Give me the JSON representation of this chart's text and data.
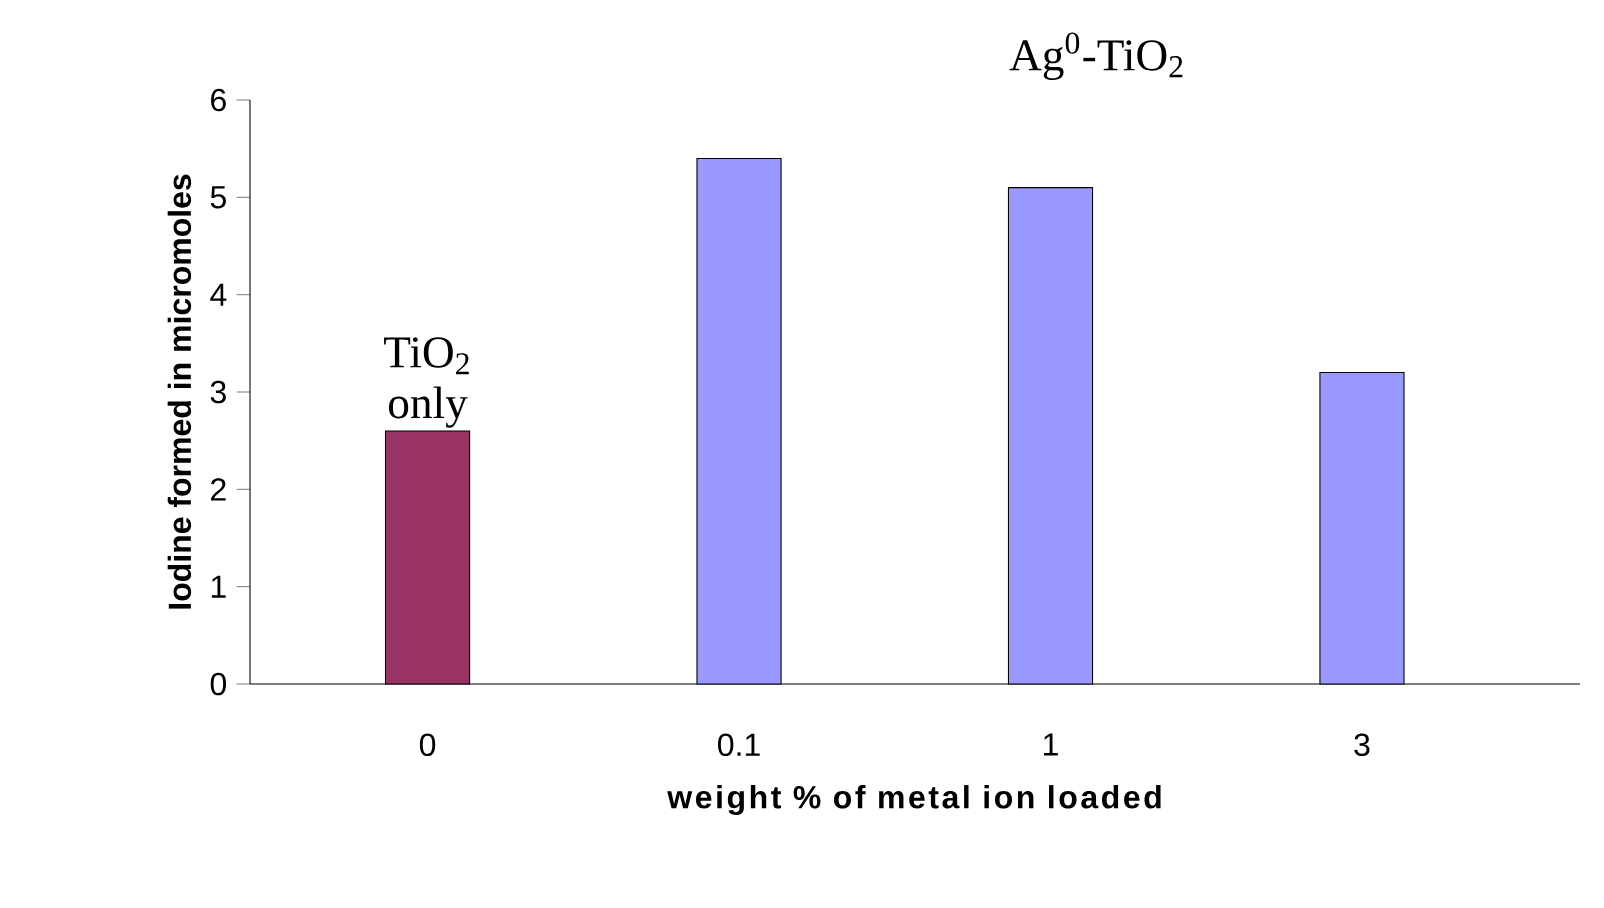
{
  "chart_data": {
    "type": "bar",
    "categories": [
      "0",
      "0.1",
      "1",
      "3"
    ],
    "values": [
      2.6,
      5.4,
      5.1,
      3.2
    ],
    "colors": [
      "#993366",
      "#9999ff",
      "#9999ff",
      "#9999ff"
    ],
    "xlabel": "weight % of metal ion loaded",
    "ylabel": "Iodine formed in micromoles",
    "ylim": [
      0,
      6
    ],
    "yticks": [
      0,
      1,
      2,
      3,
      4,
      5,
      6
    ],
    "annotations": [
      {
        "text": "TiO$_{2}$ only",
        "x": "0",
        "y": 2.6
      },
      "Ag$^{0}$-TiO$_{2}$"
    ]
  }
}
